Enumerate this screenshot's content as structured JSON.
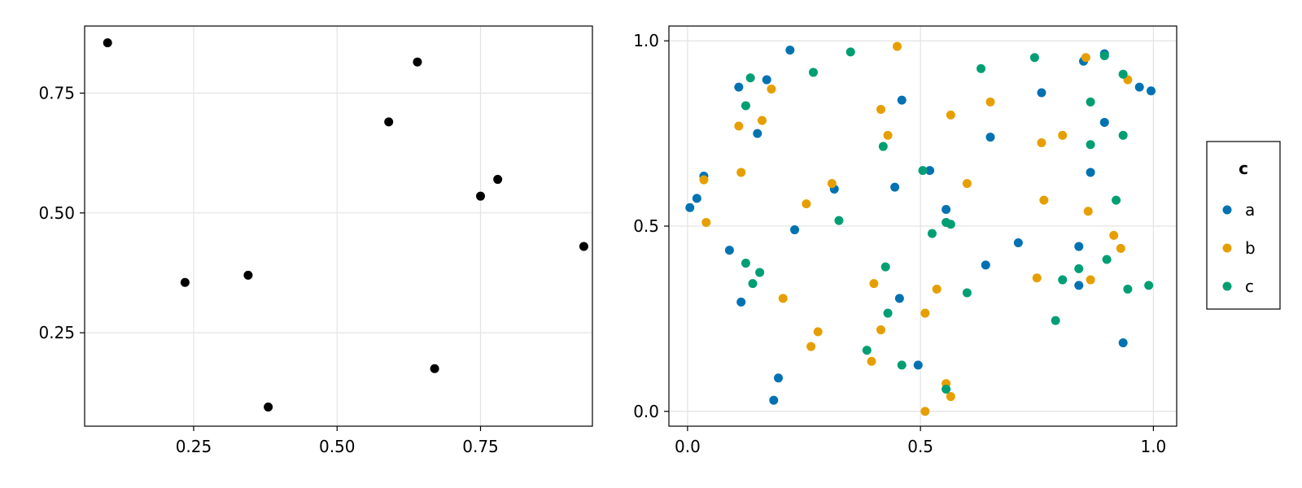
{
  "colors": {
    "left_points": "#000000",
    "a": "#0072B2",
    "b": "#E69F00",
    "c": "#009E73",
    "grid": "#e3e3e3",
    "frame": "#000000"
  },
  "chart_data": [
    {
      "type": "scatter",
      "title": "",
      "xlabel": "",
      "ylabel": "",
      "xlim": [
        0.06,
        0.945
      ],
      "ylim": [
        0.055,
        0.89
      ],
      "xticks": [
        0.25,
        0.5,
        0.75
      ],
      "xtick_labels": [
        "0.25",
        "0.50",
        "0.75"
      ],
      "yticks": [
        0.25,
        0.5,
        0.75
      ],
      "ytick_labels": [
        "0.25",
        "0.50",
        "0.75"
      ],
      "grid": true,
      "points": [
        {
          "x": 0.1,
          "y": 0.855
        },
        {
          "x": 0.64,
          "y": 0.815
        },
        {
          "x": 0.59,
          "y": 0.69
        },
        {
          "x": 0.78,
          "y": 0.57
        },
        {
          "x": 0.75,
          "y": 0.535
        },
        {
          "x": 0.93,
          "y": 0.43
        },
        {
          "x": 0.345,
          "y": 0.37
        },
        {
          "x": 0.235,
          "y": 0.355
        },
        {
          "x": 0.67,
          "y": 0.175
        },
        {
          "x": 0.38,
          "y": 0.095
        }
      ]
    },
    {
      "type": "scatter",
      "title": "",
      "xlabel": "",
      "ylabel": "",
      "xlim": [
        -0.04,
        1.05
      ],
      "ylim": [
        -0.04,
        1.04
      ],
      "xticks": [
        0.0,
        0.5,
        1.0
      ],
      "xtick_labels": [
        "0.0",
        "0.5",
        "1.0"
      ],
      "yticks": [
        0.0,
        0.5,
        1.0
      ],
      "ytick_labels": [
        "0.0",
        "0.5",
        "1.0"
      ],
      "grid": true,
      "legend": {
        "title": "c",
        "placement": "right",
        "entries": [
          "a",
          "b",
          "c"
        ]
      },
      "series": [
        {
          "name": "a",
          "points": [
            {
              "x": 0.22,
              "y": 0.975
            },
            {
              "x": 0.895,
              "y": 0.965
            },
            {
              "x": 0.85,
              "y": 0.945
            },
            {
              "x": 0.17,
              "y": 0.895
            },
            {
              "x": 0.11,
              "y": 0.875
            },
            {
              "x": 0.97,
              "y": 0.875
            },
            {
              "x": 0.995,
              "y": 0.865
            },
            {
              "x": 0.76,
              "y": 0.86
            },
            {
              "x": 0.46,
              "y": 0.84
            },
            {
              "x": 0.895,
              "y": 0.78
            },
            {
              "x": 0.15,
              "y": 0.75
            },
            {
              "x": 0.65,
              "y": 0.74
            },
            {
              "x": 0.865,
              "y": 0.645
            },
            {
              "x": 0.035,
              "y": 0.635
            },
            {
              "x": 0.52,
              "y": 0.65
            },
            {
              "x": 0.445,
              "y": 0.605
            },
            {
              "x": 0.315,
              "y": 0.6
            },
            {
              "x": 0.02,
              "y": 0.575
            },
            {
              "x": 0.005,
              "y": 0.55
            },
            {
              "x": 0.555,
              "y": 0.545
            },
            {
              "x": 0.23,
              "y": 0.49
            },
            {
              "x": 0.71,
              "y": 0.455
            },
            {
              "x": 0.84,
              "y": 0.445
            },
            {
              "x": 0.09,
              "y": 0.435
            },
            {
              "x": 0.64,
              "y": 0.395
            },
            {
              "x": 0.84,
              "y": 0.34
            },
            {
              "x": 0.455,
              "y": 0.305
            },
            {
              "x": 0.115,
              "y": 0.295
            },
            {
              "x": 0.935,
              "y": 0.185
            },
            {
              "x": 0.495,
              "y": 0.125
            },
            {
              "x": 0.195,
              "y": 0.09
            },
            {
              "x": 0.185,
              "y": 0.03
            }
          ]
        },
        {
          "name": "b",
          "points": [
            {
              "x": 0.45,
              "y": 0.985
            },
            {
              "x": 0.855,
              "y": 0.955
            },
            {
              "x": 0.945,
              "y": 0.895
            },
            {
              "x": 0.18,
              "y": 0.87
            },
            {
              "x": 0.65,
              "y": 0.835
            },
            {
              "x": 0.415,
              "y": 0.815
            },
            {
              "x": 0.565,
              "y": 0.8
            },
            {
              "x": 0.16,
              "y": 0.785
            },
            {
              "x": 0.11,
              "y": 0.77
            },
            {
              "x": 0.43,
              "y": 0.745
            },
            {
              "x": 0.805,
              "y": 0.745
            },
            {
              "x": 0.76,
              "y": 0.725
            },
            {
              "x": 0.115,
              "y": 0.645
            },
            {
              "x": 0.035,
              "y": 0.625
            },
            {
              "x": 0.31,
              "y": 0.615
            },
            {
              "x": 0.6,
              "y": 0.615
            },
            {
              "x": 0.765,
              "y": 0.57
            },
            {
              "x": 0.255,
              "y": 0.56
            },
            {
              "x": 0.86,
              "y": 0.54
            },
            {
              "x": 0.04,
              "y": 0.51
            },
            {
              "x": 0.915,
              "y": 0.475
            },
            {
              "x": 0.93,
              "y": 0.44
            },
            {
              "x": 0.75,
              "y": 0.36
            },
            {
              "x": 0.865,
              "y": 0.355
            },
            {
              "x": 0.4,
              "y": 0.345
            },
            {
              "x": 0.535,
              "y": 0.33
            },
            {
              "x": 0.205,
              "y": 0.305
            },
            {
              "x": 0.51,
              "y": 0.265
            },
            {
              "x": 0.415,
              "y": 0.22
            },
            {
              "x": 0.28,
              "y": 0.215
            },
            {
              "x": 0.265,
              "y": 0.175
            },
            {
              "x": 0.395,
              "y": 0.135
            },
            {
              "x": 0.555,
              "y": 0.075
            },
            {
              "x": 0.565,
              "y": 0.04
            },
            {
              "x": 0.51,
              "y": 0.0
            }
          ]
        },
        {
          "name": "c",
          "points": [
            {
              "x": 0.35,
              "y": 0.97
            },
            {
              "x": 0.895,
              "y": 0.96
            },
            {
              "x": 0.745,
              "y": 0.955
            },
            {
              "x": 0.63,
              "y": 0.925
            },
            {
              "x": 0.27,
              "y": 0.915
            },
            {
              "x": 0.935,
              "y": 0.91
            },
            {
              "x": 0.135,
              "y": 0.9
            },
            {
              "x": 0.865,
              "y": 0.835
            },
            {
              "x": 0.125,
              "y": 0.825
            },
            {
              "x": 0.935,
              "y": 0.745
            },
            {
              "x": 0.865,
              "y": 0.72
            },
            {
              "x": 0.42,
              "y": 0.715
            },
            {
              "x": 0.505,
              "y": 0.65
            },
            {
              "x": 0.92,
              "y": 0.57
            },
            {
              "x": 0.325,
              "y": 0.515
            },
            {
              "x": 0.555,
              "y": 0.51
            },
            {
              "x": 0.565,
              "y": 0.505
            },
            {
              "x": 0.525,
              "y": 0.48
            },
            {
              "x": 0.9,
              "y": 0.41
            },
            {
              "x": 0.125,
              "y": 0.4
            },
            {
              "x": 0.425,
              "y": 0.39
            },
            {
              "x": 0.84,
              "y": 0.385
            },
            {
              "x": 0.155,
              "y": 0.375
            },
            {
              "x": 0.805,
              "y": 0.355
            },
            {
              "x": 0.14,
              "y": 0.345
            },
            {
              "x": 0.99,
              "y": 0.34
            },
            {
              "x": 0.945,
              "y": 0.33
            },
            {
              "x": 0.6,
              "y": 0.32
            },
            {
              "x": 0.43,
              "y": 0.265
            },
            {
              "x": 0.79,
              "y": 0.245
            },
            {
              "x": 0.385,
              "y": 0.165
            },
            {
              "x": 0.46,
              "y": 0.125
            },
            {
              "x": 0.555,
              "y": 0.06
            }
          ]
        }
      ]
    }
  ]
}
